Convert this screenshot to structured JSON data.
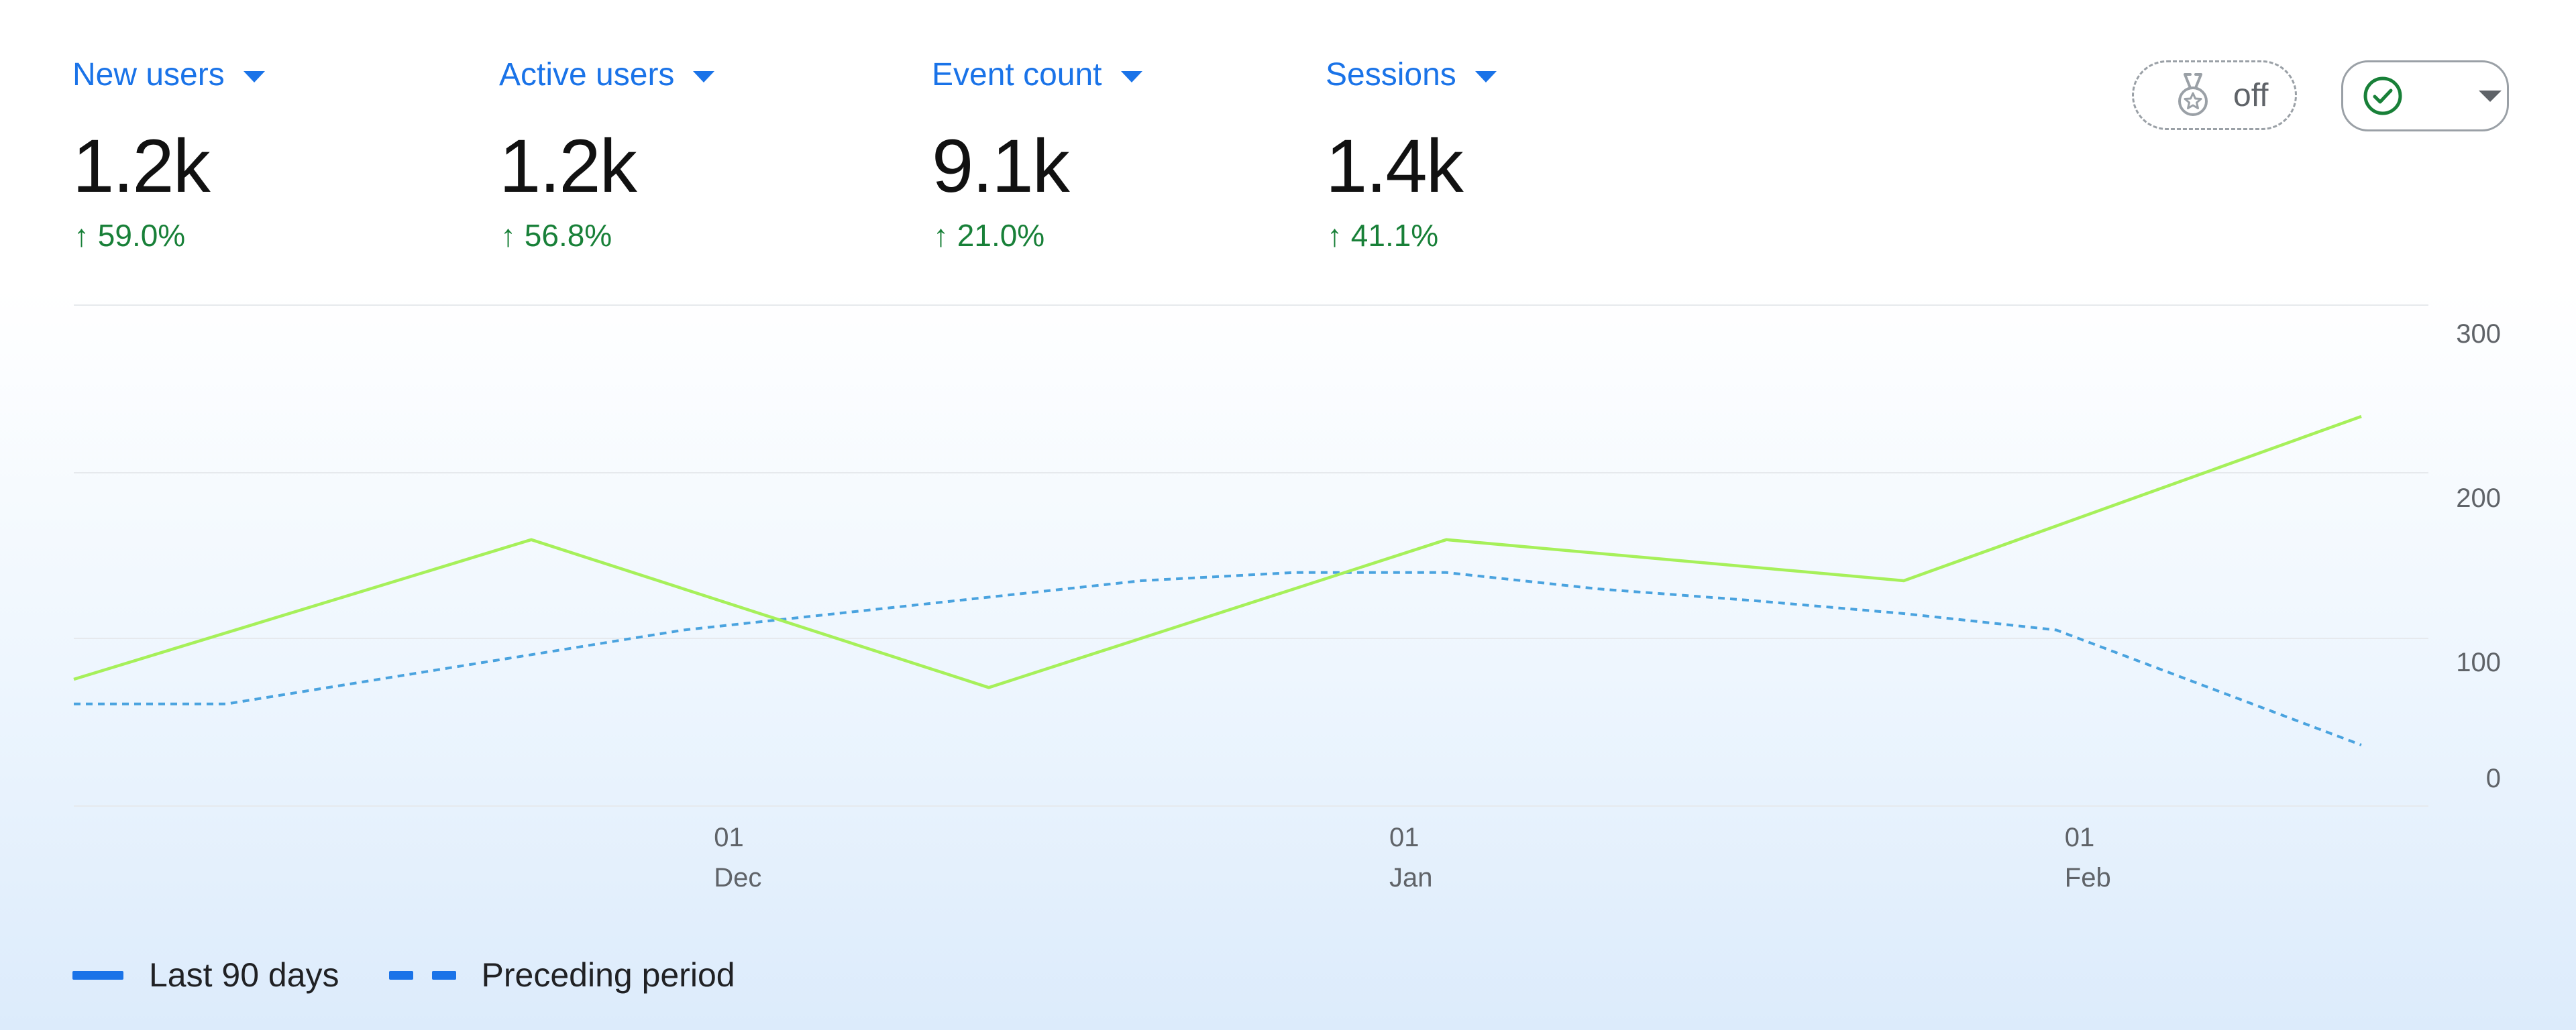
{
  "metrics": [
    {
      "label": "New users",
      "value": "1.2k",
      "change": "↑ 59.0%"
    },
    {
      "label": "Active users",
      "value": "1.2k",
      "change": "↑ 56.8%"
    },
    {
      "label": "Event count",
      "value": "9.1k",
      "change": "↑ 21.0%"
    },
    {
      "label": "Sessions",
      "value": "1.4k",
      "change": "↑ 41.1%"
    }
  ],
  "controls": {
    "benchmark_toggle_text": "off",
    "benchmark_icon": "medal-icon",
    "status_icon": "check-circle-icon",
    "status_icon_color": "#188038"
  },
  "colors": {
    "accent": "#1a73e8",
    "positive": "#188038",
    "current_series": "#a6f05a",
    "previous_series": "#4aa3df"
  },
  "chart_data": {
    "type": "line",
    "y_ticks": [
      "300",
      "200",
      "100",
      "0"
    ],
    "ylim": [
      0,
      300
    ],
    "x_ticks": [
      {
        "day": "01",
        "month": "Dec"
      },
      {
        "day": "01",
        "month": "Jan"
      },
      {
        "day": "01",
        "month": "Feb"
      }
    ],
    "grid": true,
    "legend_position": "bottom-left",
    "series": [
      {
        "name": "Last 90 days",
        "style": "solid",
        "points": [
          {
            "x": "2024-11-01",
            "y": 60
          },
          {
            "x": "2024-11-22",
            "y": 145
          },
          {
            "x": "2024-12-13",
            "y": 55
          },
          {
            "x": "2025-01-03",
            "y": 145
          },
          {
            "x": "2025-01-24",
            "y": 120
          },
          {
            "x": "2025-02-14",
            "y": 220
          }
        ]
      },
      {
        "name": "Preceding period",
        "style": "dashed",
        "points": [
          {
            "x": "2024-11-01",
            "y": 45
          },
          {
            "x": "2024-11-08",
            "y": 45
          },
          {
            "x": "2024-11-15",
            "y": 60
          },
          {
            "x": "2024-11-22",
            "y": 75
          },
          {
            "x": "2024-11-29",
            "y": 90
          },
          {
            "x": "2024-12-06",
            "y": 100
          },
          {
            "x": "2024-12-13",
            "y": 110
          },
          {
            "x": "2024-12-20",
            "y": 120
          },
          {
            "x": "2024-12-27",
            "y": 125
          },
          {
            "x": "2025-01-03",
            "y": 125
          },
          {
            "x": "2025-01-10",
            "y": 115
          },
          {
            "x": "2025-01-17",
            "y": 108
          },
          {
            "x": "2025-01-24",
            "y": 100
          },
          {
            "x": "2025-01-31",
            "y": 90
          },
          {
            "x": "2025-02-07",
            "y": 55
          },
          {
            "x": "2025-02-14",
            "y": 20
          }
        ]
      }
    ]
  },
  "legend": [
    {
      "label": "Last 90 days",
      "style": "solid"
    },
    {
      "label": "Preceding period",
      "style": "dashed"
    }
  ]
}
